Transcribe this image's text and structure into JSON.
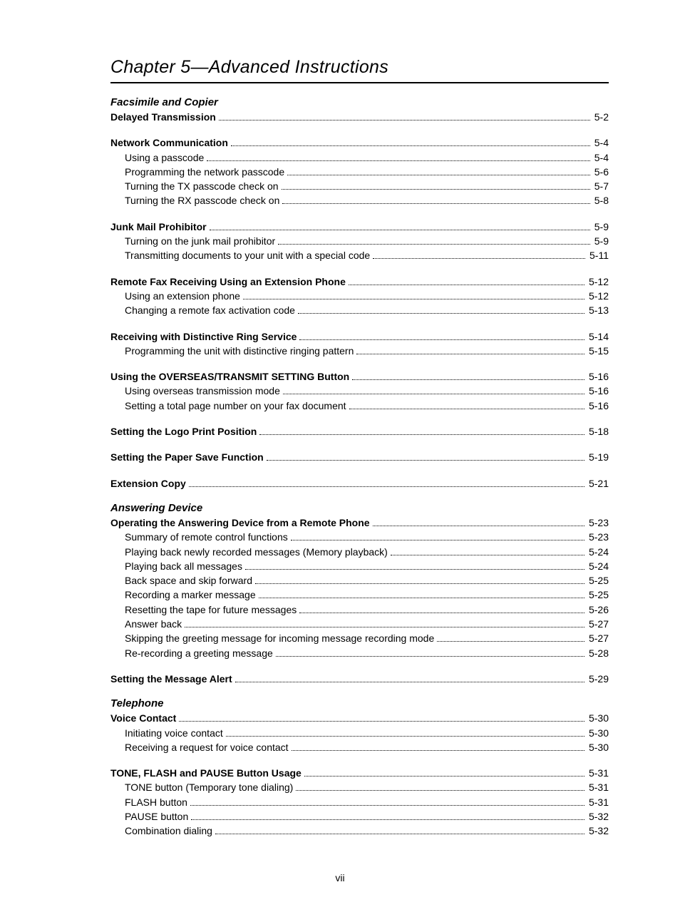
{
  "chapter_title": "Chapter 5—Advanced Instructions",
  "footer": "vii",
  "sections": [
    {
      "heading": "Facsimile and Copier",
      "groups": [
        [
          {
            "label": "Delayed Transmission",
            "page": "5-2",
            "bold": true
          }
        ],
        [
          {
            "label": "Network Communication",
            "page": "5-4",
            "bold": true
          },
          {
            "label": "Using a passcode",
            "page": "5-4",
            "sub": true
          },
          {
            "label": "Programming the network passcode",
            "page": "5-6",
            "sub": true
          },
          {
            "label": "Turning the TX passcode check on",
            "page": "5-7",
            "sub": true
          },
          {
            "label": "Turning the RX passcode check on",
            "page": "5-8",
            "sub": true
          }
        ],
        [
          {
            "label": "Junk Mail Prohibitor",
            "page": "5-9",
            "bold": true
          },
          {
            "label": "Turning on the junk mail prohibitor",
            "page": "5-9",
            "sub": true
          },
          {
            "label": "Transmitting documents to your unit with a special code",
            "page": "5-11",
            "sub": true
          }
        ],
        [
          {
            "label": "Remote Fax Receiving Using an Extension Phone",
            "page": "5-12",
            "bold": true
          },
          {
            "label": "Using an extension phone",
            "page": "5-12",
            "sub": true
          },
          {
            "label": "Changing a remote fax activation code",
            "page": "5-13",
            "sub": true
          }
        ],
        [
          {
            "label": "Receiving with Distinctive Ring Service",
            "page": "5-14",
            "bold": true
          },
          {
            "label": "Programming the unit with distinctive ringing pattern",
            "page": "5-15",
            "sub": true
          }
        ],
        [
          {
            "label": "Using the OVERSEAS/TRANSMIT SETTING Button",
            "page": "5-16",
            "bold": true
          },
          {
            "label": "Using overseas transmission mode",
            "page": "5-16",
            "sub": true
          },
          {
            "label": "Setting a total page number on your fax document",
            "page": "5-16",
            "sub": true
          }
        ],
        [
          {
            "label": "Setting the Logo Print Position",
            "page": "5-18",
            "bold": true
          }
        ],
        [
          {
            "label": "Setting the Paper Save Function",
            "page": "5-19",
            "bold": true
          }
        ],
        [
          {
            "label": "Extension Copy",
            "page": "5-21",
            "bold": true
          }
        ]
      ]
    },
    {
      "heading": "Answering Device",
      "groups": [
        [
          {
            "label": "Operating the Answering Device from a Remote Phone",
            "page": "5-23",
            "bold": true
          },
          {
            "label": "Summary of remote control functions",
            "page": "5-23",
            "sub": true
          },
          {
            "label": "Playing back newly recorded messages (Memory playback)",
            "page": "5-24",
            "sub": true
          },
          {
            "label": "Playing back all messages",
            "page": "5-24",
            "sub": true
          },
          {
            "label": "Back space and skip forward",
            "page": "5-25",
            "sub": true
          },
          {
            "label": "Recording a marker message",
            "page": "5-25",
            "sub": true
          },
          {
            "label": "Resetting the tape for future messages",
            "page": "5-26",
            "sub": true
          },
          {
            "label": "Answer back",
            "page": "5-27",
            "sub": true
          },
          {
            "label": "Skipping the greeting message for incoming message recording mode",
            "page": "5-27",
            "sub": true
          },
          {
            "label": "Re-recording a greeting message",
            "page": "5-28",
            "sub": true
          }
        ],
        [
          {
            "label": "Setting the Message Alert",
            "page": "5-29",
            "bold": true
          }
        ]
      ]
    },
    {
      "heading": "Telephone",
      "groups": [
        [
          {
            "label": "Voice Contact",
            "page": "5-30",
            "bold": true
          },
          {
            "label": "Initiating voice contact",
            "page": "5-30",
            "sub": true
          },
          {
            "label": "Receiving a request for voice contact",
            "page": "5-30",
            "sub": true
          }
        ],
        [
          {
            "label": "TONE, FLASH and PAUSE Button Usage",
            "page": "5-31",
            "bold": true
          },
          {
            "label": "TONE button (Temporary tone dialing)",
            "page": "5-31",
            "sub": true
          },
          {
            "label": "FLASH button",
            "page": "5-31",
            "sub": true
          },
          {
            "label": "PAUSE button",
            "page": "5-32",
            "sub": true
          },
          {
            "label": "Combination dialing",
            "page": "5-32",
            "sub": true
          }
        ]
      ]
    }
  ]
}
